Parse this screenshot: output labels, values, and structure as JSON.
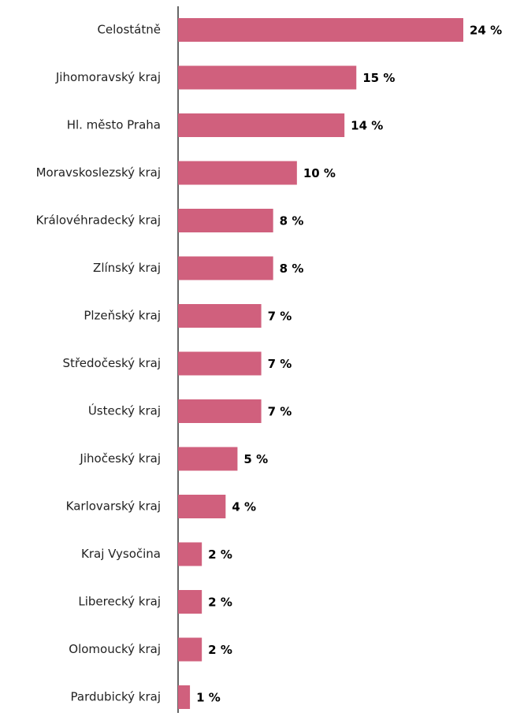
{
  "chart_data": {
    "type": "bar",
    "orientation": "horizontal",
    "categories": [
      "Celostátně",
      "Jihomoravský kraj",
      "Hl. město Praha",
      "Moravskoslezský kraj",
      "Královéhradecký kraj",
      "Zlínský kraj",
      "Plzeňský kraj",
      "Středočeský kraj",
      "Ústecký kraj",
      "Jihočeský kraj",
      "Karlovarský kraj",
      "Kraj Vysočina",
      "Liberecký kraj",
      "Olomoucký kraj",
      "Pardubický kraj"
    ],
    "values": [
      24,
      15,
      14,
      10,
      8,
      8,
      7,
      7,
      7,
      5,
      4,
      2,
      2,
      2,
      1
    ],
    "value_labels": [
      "24 %",
      "15 %",
      "14 %",
      "10 %",
      "8 %",
      "8 %",
      "7 %",
      "7 %",
      "7 %",
      "5 %",
      "4 %",
      "2 %",
      "2 %",
      "2 %",
      "1 %"
    ],
    "color": "#d0607d"
  }
}
